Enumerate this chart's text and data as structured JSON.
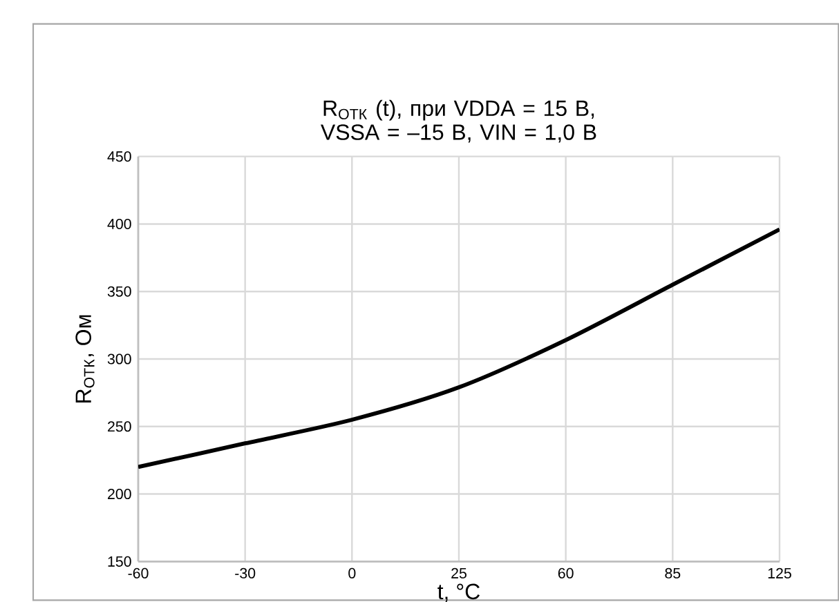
{
  "chart_data": {
    "type": "line",
    "title": "R$_{ОТК}$ (t), при VDDA = 15 В, VSSA = –15 В, VIN = 1,0 В",
    "xlabel": "t, °C",
    "ylabel": "R$_{ОТК}$, Ом",
    "categories": [
      "-60",
      "-30",
      "0",
      "25",
      "60",
      "85",
      "125"
    ],
    "series": [
      {
        "color": "#000000",
        "values": [
          220,
          237.5,
          255,
          279,
          314,
          355,
          396
        ]
      }
    ],
    "ylim": [
      150,
      450
    ],
    "yticks": [
      150,
      200,
      250,
      300,
      350,
      400,
      450
    ],
    "grid": true,
    "marker": "none",
    "line_style": "solid"
  }
}
